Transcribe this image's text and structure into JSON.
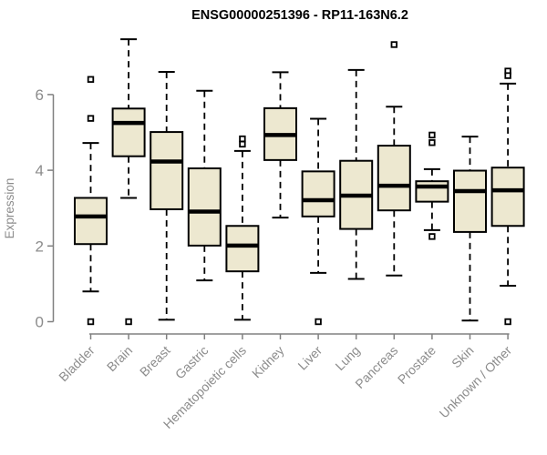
{
  "chart_data": {
    "type": "boxplot",
    "title": "ENSG00000251396 - RP11-163N6.2",
    "ylabel": "Expression",
    "xlabel": "",
    "y_axis": {
      "ticks": [
        0,
        2,
        4,
        6
      ],
      "range": [
        0,
        7.6
      ]
    },
    "legend": "none",
    "grid": false,
    "colors": {
      "box_fill": "#EDE8D0",
      "box_border": "#000000",
      "median": "#000000",
      "whisker": "#000000",
      "outlier_fill": "#FFFFFF",
      "axis_line": "#808080",
      "tick_label": "#8C8C8C",
      "title": "#000000"
    },
    "categories": [
      "Bladder",
      "Brain",
      "Breast",
      "Gastric",
      "Hematopoietic cells",
      "Kidney",
      "Liver",
      "Lung",
      "Pancreas",
      "Prostate",
      "Skin",
      "Unknown / Other"
    ],
    "series": [
      {
        "name": "Bladder",
        "whisker_low": 0.8,
        "q1": 2.05,
        "median": 2.78,
        "q3": 3.27,
        "whisker_high": 4.72,
        "outliers": [
          6.4,
          5.37,
          0.0
        ]
      },
      {
        "name": "Brain",
        "whisker_low": 3.27,
        "q1": 4.37,
        "median": 5.25,
        "q3": 5.63,
        "whisker_high": 7.46,
        "outliers": [
          0.0
        ]
      },
      {
        "name": "Breast",
        "whisker_low": 0.05,
        "q1": 2.97,
        "median": 4.23,
        "q3": 5.01,
        "whisker_high": 6.6,
        "outliers": []
      },
      {
        "name": "Gastric",
        "whisker_low": 1.09,
        "q1": 2.01,
        "median": 2.91,
        "q3": 4.05,
        "whisker_high": 6.1,
        "outliers": []
      },
      {
        "name": "Hematopoietic cells",
        "whisker_low": 0.05,
        "q1": 1.33,
        "median": 2.01,
        "q3": 2.53,
        "whisker_high": 4.51,
        "outliers": [
          4.83,
          4.69
        ]
      },
      {
        "name": "Kidney",
        "whisker_low": 2.75,
        "q1": 4.27,
        "median": 4.93,
        "q3": 5.64,
        "whisker_high": 6.59,
        "outliers": []
      },
      {
        "name": "Liver",
        "whisker_low": 1.29,
        "q1": 2.78,
        "median": 3.21,
        "q3": 3.97,
        "whisker_high": 5.36,
        "outliers": [
          0.0
        ]
      },
      {
        "name": "Lung",
        "whisker_low": 1.13,
        "q1": 2.45,
        "median": 3.33,
        "q3": 4.25,
        "whisker_high": 6.65,
        "outliers": []
      },
      {
        "name": "Pancreas",
        "whisker_low": 1.22,
        "q1": 2.94,
        "median": 3.59,
        "q3": 4.65,
        "whisker_high": 5.68,
        "outliers": [
          7.32
        ]
      },
      {
        "name": "Prostate",
        "whisker_low": 2.42,
        "q1": 3.17,
        "median": 3.57,
        "q3": 3.71,
        "whisker_high": 4.03,
        "outliers": [
          4.93,
          4.73,
          2.25
        ]
      },
      {
        "name": "Skin",
        "whisker_low": 0.03,
        "q1": 2.37,
        "median": 3.45,
        "q3": 3.99,
        "whisker_high": 4.89,
        "outliers": []
      },
      {
        "name": "Unknown / Other",
        "whisker_low": 0.95,
        "q1": 2.53,
        "median": 3.47,
        "q3": 4.07,
        "whisker_high": 6.29,
        "outliers": [
          6.62,
          6.5,
          0.0
        ]
      }
    ]
  }
}
